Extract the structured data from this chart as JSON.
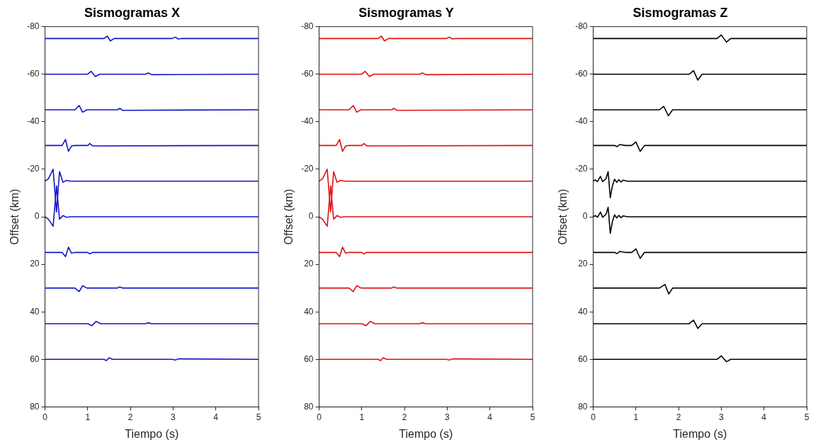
{
  "chart_data": [
    {
      "type": "line",
      "title": "Sismogramas X",
      "xlabel": "Tiempo (s)",
      "ylabel": "Offset (km)",
      "xlim": [
        0,
        5
      ],
      "xticks": [
        0,
        1,
        2,
        3,
        4,
        5
      ],
      "ylim": [
        80,
        -80
      ],
      "yticks": [
        -80,
        -60,
        -40,
        -20,
        0,
        20,
        40,
        60,
        80
      ],
      "legend": false,
      "marker": "none",
      "line_style": "solid",
      "series": [
        {
          "color": "#1414c8",
          "x": [
            0,
            1.38,
            1.46,
            1.53,
            1.62,
            2.98,
            3.05,
            3.12,
            3.2,
            5
          ],
          "values": [
            -75,
            -75,
            -76,
            -74,
            -75,
            -75,
            -75.6,
            -74.8,
            -75,
            -75
          ]
        },
        {
          "color": "#1414c8",
          "x": [
            0,
            1.0,
            1.08,
            1.18,
            1.28,
            2.35,
            2.42,
            2.5,
            5
          ],
          "values": [
            -60,
            -60,
            -61.2,
            -59,
            -60,
            -60,
            -60.5,
            -59.8,
            -60
          ]
        },
        {
          "color": "#1414c8",
          "x": [
            0,
            0.7,
            0.8,
            0.88,
            0.98,
            1.7,
            1.75,
            1.82,
            5
          ],
          "values": [
            -45,
            -45,
            -46.8,
            -44,
            -45,
            -45,
            -45.6,
            -44.8,
            -45
          ]
        },
        {
          "color": "#1414c8",
          "x": [
            0,
            0.4,
            0.48,
            0.55,
            0.62,
            0.7,
            1.0,
            1.05,
            1.12,
            5
          ],
          "values": [
            -30,
            -30,
            -32.5,
            -27.5,
            -29.8,
            -30,
            -30,
            -30.8,
            -29.8,
            -30
          ]
        },
        {
          "color": "#1414c8",
          "x": [
            0,
            0.08,
            0.19,
            0.27,
            0.34,
            0.42,
            0.5,
            0.6,
            5
          ],
          "values": [
            -15,
            -16,
            -20,
            -2,
            -19,
            -14.5,
            -15.3,
            -15,
            -15
          ]
        },
        {
          "color": "#1414c8",
          "x": [
            0,
            0.08,
            0.19,
            0.27,
            0.34,
            0.42,
            0.5,
            0.6,
            5
          ],
          "values": [
            0,
            1,
            4,
            -13,
            1,
            -0.5,
            0.2,
            0,
            0
          ]
        },
        {
          "color": "#1414c8",
          "x": [
            0,
            0.4,
            0.48,
            0.55,
            0.62,
            0.7,
            1.0,
            1.05,
            1.12,
            5
          ],
          "values": [
            15,
            15,
            16.8,
            12.8,
            15.3,
            15,
            15,
            15.6,
            15,
            15
          ]
        },
        {
          "color": "#1414c8",
          "x": [
            0,
            0.7,
            0.8,
            0.88,
            0.98,
            1.7,
            1.75,
            1.82,
            5
          ],
          "values": [
            30,
            30,
            31.5,
            29,
            30,
            30,
            29.5,
            30,
            30
          ]
        },
        {
          "color": "#1414c8",
          "x": [
            0,
            1.0,
            1.1,
            1.2,
            1.3,
            2.35,
            2.42,
            2.5,
            5
          ],
          "values": [
            45,
            45,
            45.8,
            44,
            45,
            45,
            44.6,
            45,
            45
          ]
        },
        {
          "color": "#1414c8",
          "x": [
            0,
            1.38,
            1.44,
            1.5,
            1.58,
            2.98,
            3.05,
            3.12,
            5
          ],
          "values": [
            60,
            60,
            60.5,
            59.3,
            60,
            60,
            60.3,
            59.8,
            60
          ]
        }
      ]
    },
    {
      "type": "line",
      "title": "Sismogramas Y",
      "xlabel": "Tiempo (s)",
      "ylabel": "Offset (km)",
      "xlim": [
        0,
        5
      ],
      "xticks": [
        0,
        1,
        2,
        3,
        4,
        5
      ],
      "ylim": [
        80,
        -80
      ],
      "yticks": [
        -80,
        -60,
        -40,
        -20,
        0,
        20,
        40,
        60,
        80
      ],
      "legend": false,
      "marker": "none",
      "line_style": "solid",
      "series": [
        {
          "color": "#e01010",
          "x": [
            0,
            1.38,
            1.46,
            1.53,
            1.62,
            2.98,
            3.05,
            3.12,
            3.2,
            5
          ],
          "values": [
            -75,
            -75,
            -76,
            -74,
            -75,
            -75,
            -75.6,
            -74.8,
            -75,
            -75
          ]
        },
        {
          "color": "#e01010",
          "x": [
            0,
            1.0,
            1.08,
            1.18,
            1.28,
            2.35,
            2.42,
            2.5,
            5
          ],
          "values": [
            -60,
            -60,
            -61.2,
            -59,
            -60,
            -60,
            -60.5,
            -59.8,
            -60
          ]
        },
        {
          "color": "#e01010",
          "x": [
            0,
            0.7,
            0.8,
            0.88,
            0.98,
            1.7,
            1.75,
            1.82,
            5
          ],
          "values": [
            -45,
            -45,
            -46.8,
            -44,
            -45,
            -45,
            -45.6,
            -44.8,
            -45
          ]
        },
        {
          "color": "#e01010",
          "x": [
            0,
            0.4,
            0.48,
            0.55,
            0.62,
            0.7,
            1.0,
            1.05,
            1.12,
            5
          ],
          "values": [
            -30,
            -30,
            -32.5,
            -27.5,
            -29.8,
            -30,
            -30,
            -30.8,
            -29.8,
            -30
          ]
        },
        {
          "color": "#e01010",
          "x": [
            0,
            0.08,
            0.19,
            0.27,
            0.34,
            0.42,
            0.5,
            0.6,
            5
          ],
          "values": [
            -15,
            -16,
            -20,
            -2,
            -19,
            -14.5,
            -15.3,
            -15,
            -15
          ]
        },
        {
          "color": "#e01010",
          "x": [
            0,
            0.08,
            0.19,
            0.27,
            0.34,
            0.42,
            0.5,
            0.6,
            5
          ],
          "values": [
            0,
            1,
            4,
            -13,
            1,
            -0.5,
            0.2,
            0,
            0
          ]
        },
        {
          "color": "#e01010",
          "x": [
            0,
            0.4,
            0.48,
            0.55,
            0.62,
            0.7,
            1.0,
            1.05,
            1.12,
            5
          ],
          "values": [
            15,
            15,
            16.8,
            12.8,
            15.3,
            15,
            15,
            15.6,
            15,
            15
          ]
        },
        {
          "color": "#e01010",
          "x": [
            0,
            0.7,
            0.8,
            0.88,
            0.98,
            1.7,
            1.75,
            1.82,
            5
          ],
          "values": [
            30,
            30,
            31.5,
            29,
            30,
            30,
            29.5,
            30,
            30
          ]
        },
        {
          "color": "#e01010",
          "x": [
            0,
            1.0,
            1.1,
            1.2,
            1.3,
            2.35,
            2.42,
            2.5,
            5
          ],
          "values": [
            45,
            45,
            45.8,
            44,
            45,
            45,
            44.6,
            45,
            45
          ]
        },
        {
          "color": "#e01010",
          "x": [
            0,
            1.38,
            1.44,
            1.5,
            1.58,
            2.98,
            3.05,
            3.12,
            5
          ],
          "values": [
            60,
            60,
            60.5,
            59.3,
            60,
            60,
            60.3,
            59.8,
            60
          ]
        }
      ]
    },
    {
      "type": "line",
      "title": "Sismogramas Z",
      "xlabel": "Tiempo (s)",
      "ylabel": "Offset (km)",
      "xlim": [
        0,
        5
      ],
      "xticks": [
        0,
        1,
        2,
        3,
        4,
        5
      ],
      "ylim": [
        80,
        -80
      ],
      "yticks": [
        -80,
        -60,
        -40,
        -20,
        0,
        20,
        40,
        60,
        80
      ],
      "legend": false,
      "marker": "none",
      "line_style": "solid",
      "series": [
        {
          "color": "#000000",
          "x": [
            0,
            2.9,
            3.0,
            3.12,
            3.22,
            5
          ],
          "values": [
            -75,
            -75,
            -76.5,
            -73.5,
            -75,
            -75
          ]
        },
        {
          "color": "#000000",
          "x": [
            0,
            2.25,
            2.35,
            2.45,
            2.55,
            5
          ],
          "values": [
            -60,
            -60,
            -61.5,
            -57.5,
            -60,
            -60
          ]
        },
        {
          "color": "#000000",
          "x": [
            0,
            1.55,
            1.65,
            1.76,
            1.86,
            5
          ],
          "values": [
            -45,
            -45,
            -46.5,
            -42.5,
            -45,
            -45
          ]
        },
        {
          "color": "#000000",
          "x": [
            0,
            0.5,
            0.56,
            0.62,
            0.75,
            0.9,
            1.0,
            1.1,
            1.2,
            5
          ],
          "values": [
            -30,
            -30,
            -29.5,
            -30.4,
            -30,
            -30,
            -31.5,
            -27.5,
            -30,
            -30
          ]
        },
        {
          "color": "#000000",
          "x": [
            0,
            0.05,
            0.1,
            0.17,
            0.22,
            0.3,
            0.35,
            0.4,
            0.45,
            0.5,
            0.55,
            0.6,
            0.65,
            0.7,
            0.8,
            5
          ],
          "values": [
            -15,
            -15.5,
            -14.8,
            -17,
            -14.8,
            -16,
            -19,
            -8,
            -13,
            -15.8,
            -14.5,
            -15.6,
            -14.6,
            -15.4,
            -15,
            -15
          ]
        },
        {
          "color": "#000000",
          "x": [
            0,
            0.05,
            0.1,
            0.17,
            0.22,
            0.3,
            0.35,
            0.4,
            0.45,
            0.5,
            0.55,
            0.6,
            0.65,
            0.7,
            0.8,
            5
          ],
          "values": [
            0,
            -0.5,
            0.2,
            -2,
            0.2,
            -1,
            -4,
            7,
            2,
            -0.8,
            0.5,
            -0.6,
            0.4,
            -0.4,
            0,
            0
          ]
        },
        {
          "color": "#000000",
          "x": [
            0,
            0.5,
            0.56,
            0.62,
            0.75,
            0.9,
            1.0,
            1.1,
            1.2,
            5
          ],
          "values": [
            15,
            15,
            15.5,
            14.6,
            15,
            15,
            13.5,
            17.5,
            15,
            15
          ]
        },
        {
          "color": "#000000",
          "x": [
            0,
            1.55,
            1.68,
            1.77,
            1.86,
            5
          ],
          "values": [
            30,
            30,
            28.5,
            32.5,
            30,
            30
          ]
        },
        {
          "color": "#000000",
          "x": [
            0,
            2.25,
            2.35,
            2.45,
            2.55,
            5
          ],
          "values": [
            45,
            45,
            43.5,
            47,
            45,
            45
          ]
        },
        {
          "color": "#000000",
          "x": [
            0,
            2.9,
            3.0,
            3.12,
            3.22,
            5
          ],
          "values": [
            60,
            60,
            58.5,
            61,
            60,
            60
          ]
        }
      ]
    }
  ]
}
